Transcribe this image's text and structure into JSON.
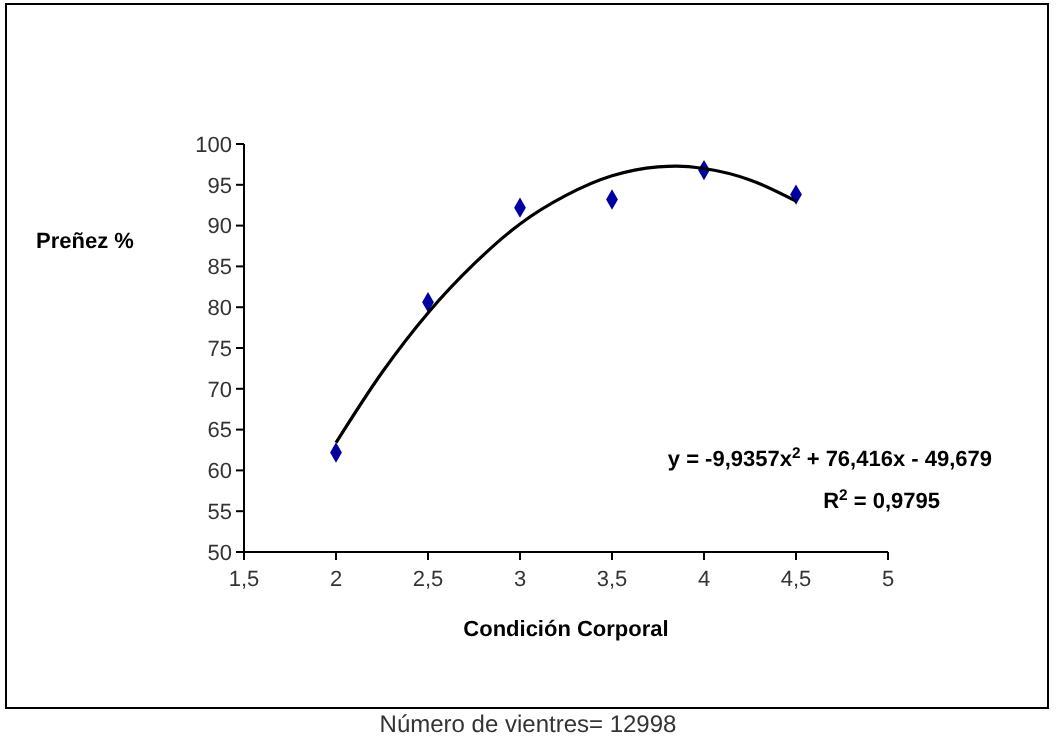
{
  "chart_data": {
    "type": "scatter",
    "xlabel": "Condición Corporal",
    "ylabel": "Preñez %",
    "xlim": [
      1.5,
      5
    ],
    "ylim": [
      50,
      100
    ],
    "xticks": [
      {
        "value": 1.5,
        "label": "1,5"
      },
      2,
      {
        "value": 2.5,
        "label": "2,5"
      },
      3,
      {
        "value": 3.5,
        "label": "3,5"
      },
      4,
      {
        "value": 4.5,
        "label": "4,5"
      },
      5
    ],
    "yticks": [
      50,
      55,
      60,
      65,
      70,
      75,
      80,
      85,
      90,
      95,
      100
    ],
    "grid": false,
    "series": [
      {
        "color": "#0000a0",
        "marker": "diamond",
        "x": [
          2,
          2.5,
          3,
          3.5,
          4,
          4.5
        ],
        "values": [
          62.2,
          80.6,
          92.2,
          93.2,
          96.8,
          93.8
        ]
      },
      {
        "type": "line",
        "color": "#000000",
        "marker": "none",
        "line_style": "solid",
        "x": [
          2,
          2.25,
          2.5,
          2.75,
          3,
          3.25,
          3.5,
          3.75,
          3.85,
          4,
          4.25,
          4.5
        ],
        "values": [
          63.4,
          72.0,
          79.3,
          85.3,
          90.2,
          93.7,
          96.1,
          97.2,
          97.3,
          97.0,
          95.6,
          93.0
        ]
      }
    ],
    "annotations": [
      "y = -9,9357x$^{2}$ + 76,416x - 49,679",
      "R$^{2}$ = 0,9795",
      "Número de vientres= 12998"
    ]
  }
}
